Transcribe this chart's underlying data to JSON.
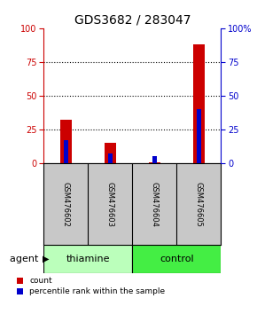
{
  "title": "GDS3682 / 283047",
  "samples": [
    "GSM476602",
    "GSM476603",
    "GSM476604",
    "GSM476605"
  ],
  "red_values": [
    32,
    15,
    0.5,
    88
  ],
  "blue_values": [
    17,
    7,
    5,
    40
  ],
  "ylim": [
    0,
    100
  ],
  "yticks": [
    0,
    25,
    50,
    75,
    100
  ],
  "red_color": "#cc0000",
  "blue_color": "#0000cc",
  "red_bar_width": 0.25,
  "blue_bar_width": 0.1,
  "groups": [
    {
      "label": "thiamine",
      "samples": [
        0,
        1
      ],
      "color": "#bbffbb"
    },
    {
      "label": "control",
      "samples": [
        2,
        3
      ],
      "color": "#44ee44"
    }
  ],
  "agent_label": "agent",
  "legend_red": "count",
  "legend_blue": "percentile rank within the sample",
  "title_fontsize": 10,
  "tick_fontsize": 7,
  "sample_fontsize": 6,
  "agent_fontsize": 8,
  "legend_fontsize": 6.5,
  "bg_color": "#c8c8c8",
  "plot_bg": "#ffffff"
}
